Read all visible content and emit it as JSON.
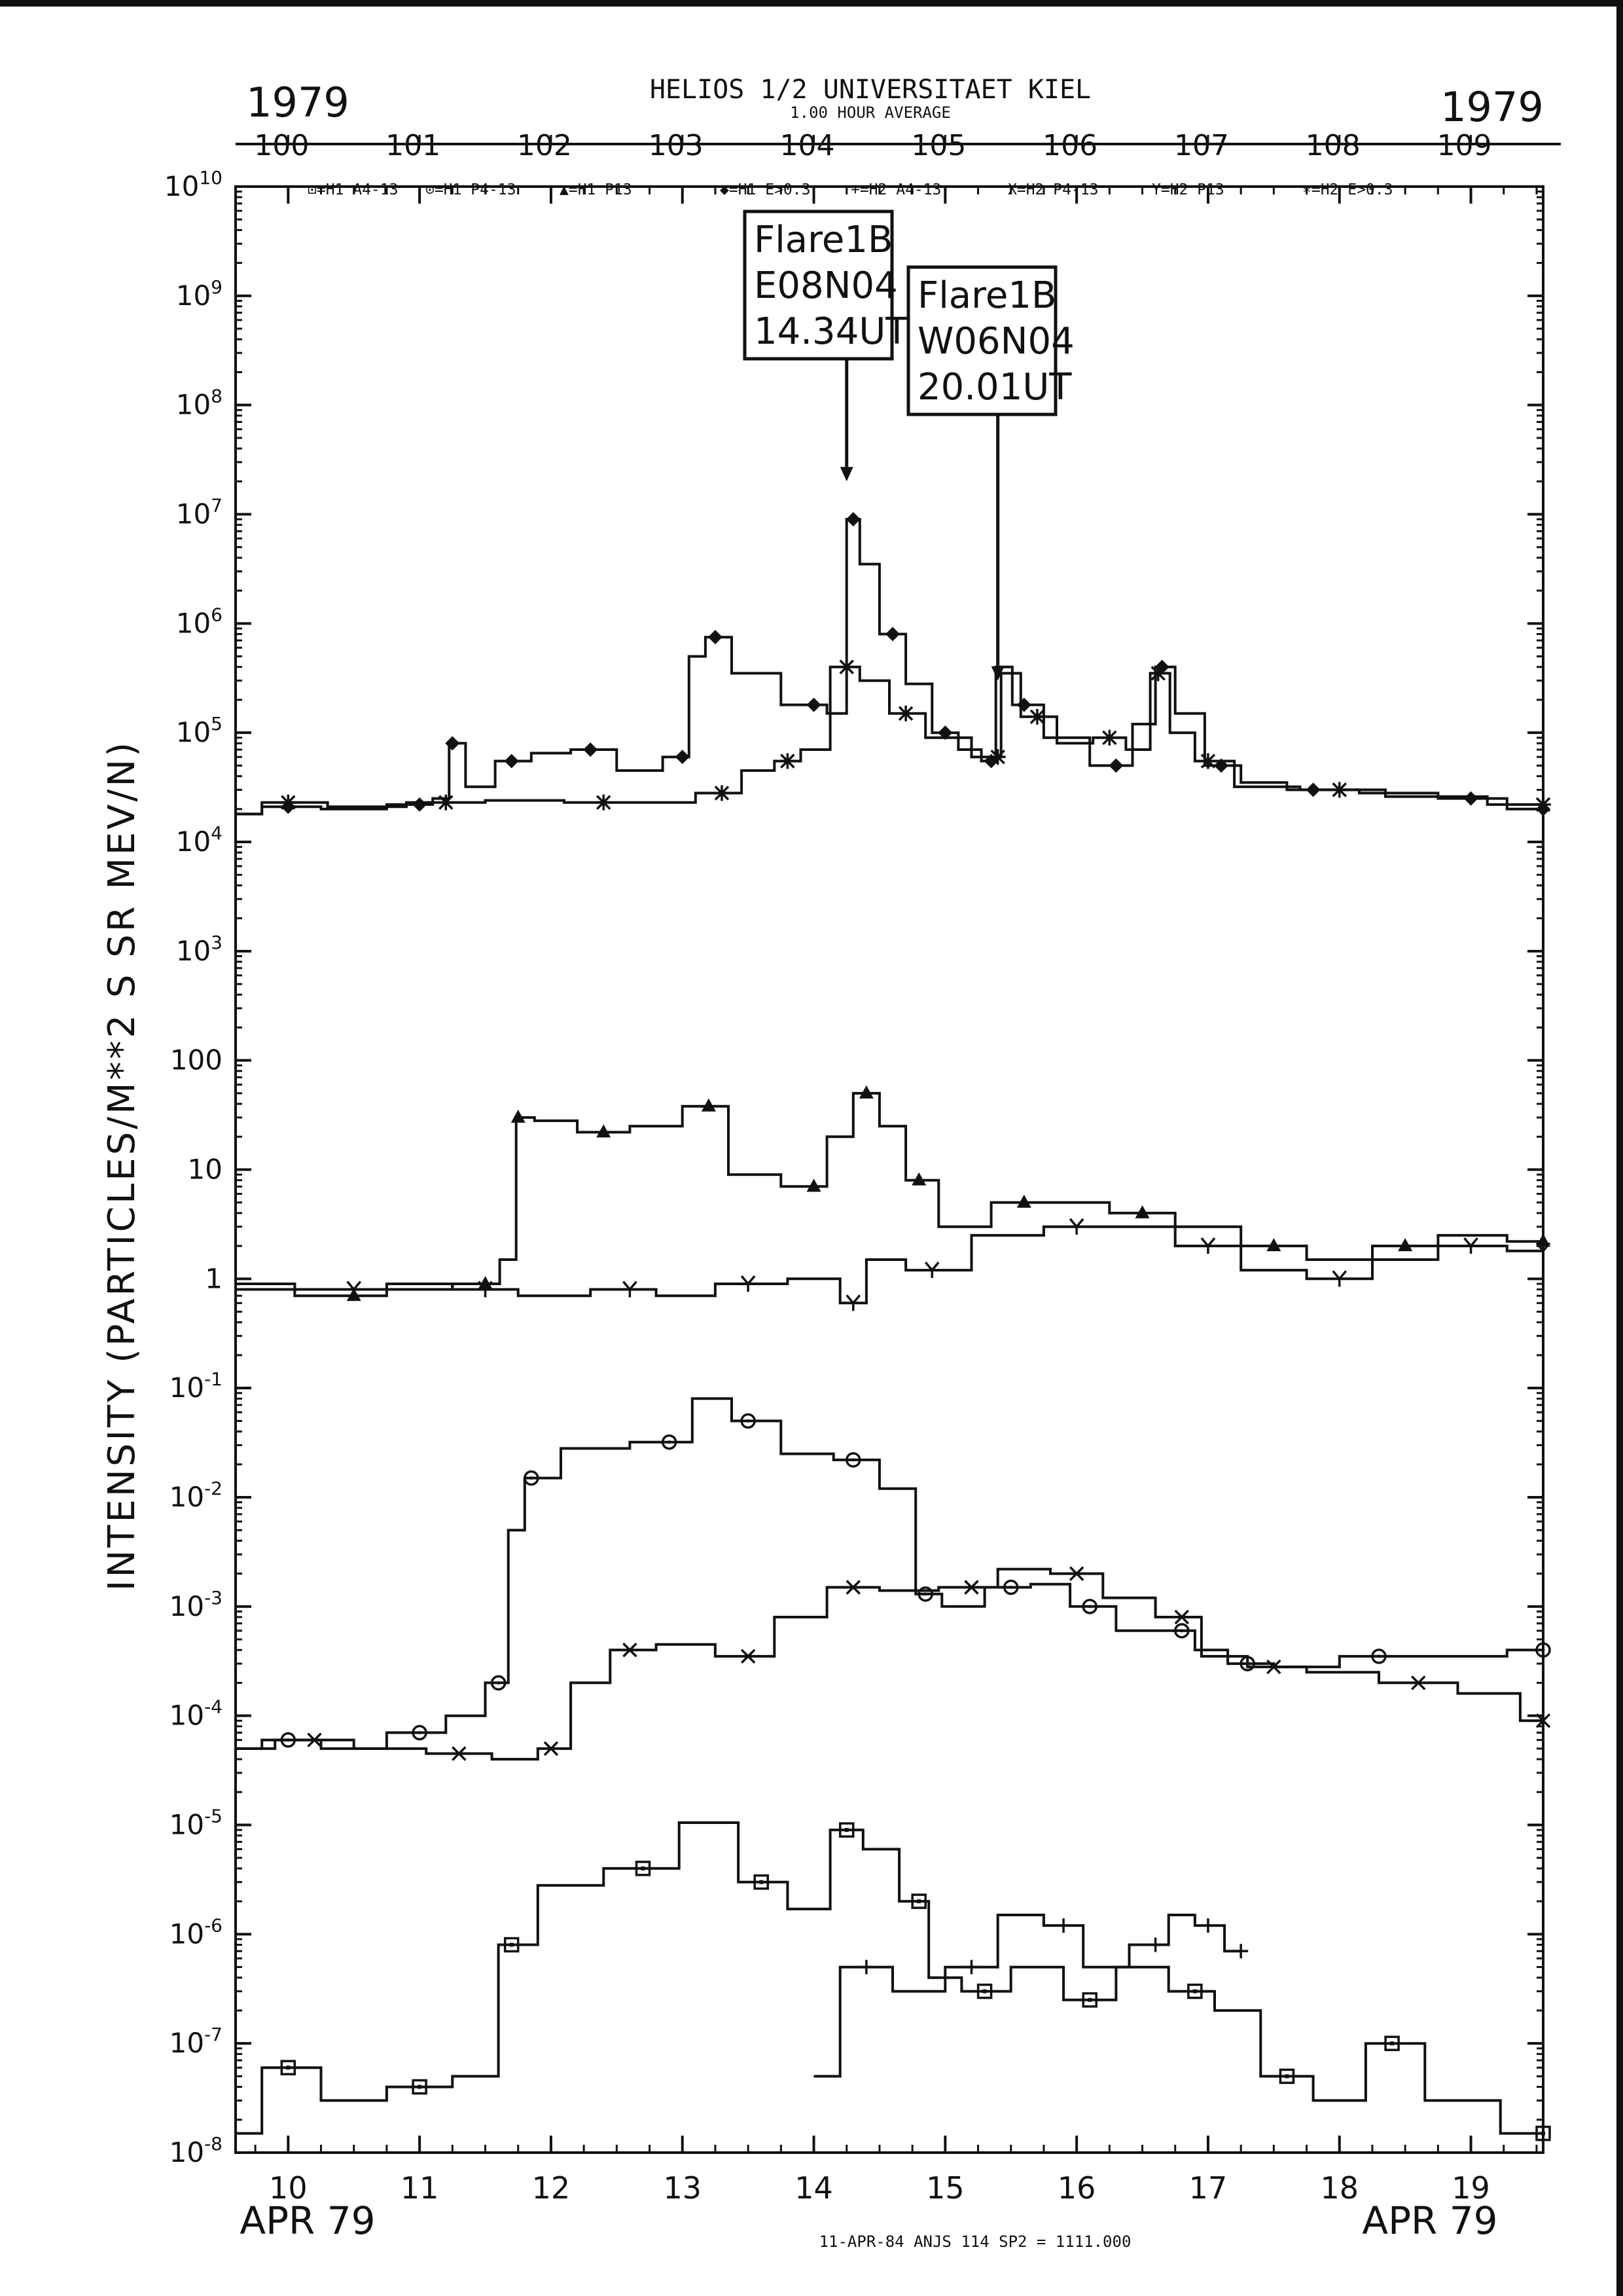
{
  "header": {
    "title": "HELIOS 1/2  UNIVERSITAET KIEL",
    "subtitle": "1.00 HOUR AVERAGE",
    "year_left": "1979",
    "year_right": "1979",
    "footer": "11-APR-84 ANJS 114 SP2 = 1111.000",
    "month_left": "APR 79",
    "month_right": "APR 79"
  },
  "chart_data": {
    "type": "line",
    "title": "HELIOS 1/2  UNIVERSITAET KIEL",
    "subtitle": "1.00 HOUR AVERAGE",
    "xlabel": "APR 79",
    "ylabel": "INTENSITY (PARTICLES/M**2 S SR MEV/N)",
    "yscale": "log",
    "ylim": [
      1e-08,
      10000000000.0
    ],
    "xlim": [
      9.6,
      19.55
    ],
    "grid": false,
    "legend_position": "top",
    "x_ticks": [
      "10",
      "11",
      "12",
      "13",
      "14",
      "15",
      "16",
      "17",
      "18",
      "19"
    ],
    "doy_ticks": [
      "100",
      "101",
      "102",
      "103",
      "104",
      "105",
      "106",
      "107",
      "108",
      "109"
    ],
    "y_ticks": [
      "10^10",
      "10^9",
      "10^8",
      "10^7",
      "10^6",
      "10^5",
      "10^4",
      "10^3",
      "100",
      "10",
      "1",
      "10^-1",
      "10^-2",
      "10^-3",
      "10^-4",
      "10^-5",
      "10^-6",
      "10^-7",
      "10^-8"
    ],
    "legend": [
      {
        "label": "⊡=H1 A4-13",
        "symbol": "⊡"
      },
      {
        "label": "⊙=H1 P4-13",
        "symbol": "⊙"
      },
      {
        "label": "▲=H1 P13",
        "symbol": "▲"
      },
      {
        "label": "◆=H1 E>0.3",
        "symbol": "◆"
      },
      {
        "label": "+=H2 A4-13",
        "symbol": "+"
      },
      {
        "label": "X=H2 P4-13",
        "symbol": "X"
      },
      {
        "label": "Y=H2 P13",
        "symbol": "Y"
      },
      {
        "label": "∗=H2 E>0.3",
        "symbol": "∗"
      }
    ],
    "annotations": [
      {
        "lines": [
          "Flare1B",
          "E08N04",
          "14.34UT"
        ],
        "x": 14.25,
        "y": 20000000.0
      },
      {
        "lines": [
          "Flare1B",
          "W06N04",
          "20.01UT"
        ],
        "x": 15.4,
        "y": 300000.0
      }
    ],
    "series": [
      {
        "name": "H1 E>0.3",
        "symbol": "◆",
        "points": [
          [
            9.6,
            18000.0
          ],
          [
            10.0,
            21000.0
          ],
          [
            10.5,
            20000.0
          ],
          [
            11.0,
            22000.0
          ],
          [
            11.2,
            25000.0
          ],
          [
            11.25,
            80000.0
          ],
          [
            11.45,
            32000.0
          ],
          [
            11.7,
            55000.0
          ],
          [
            12.0,
            65000.0
          ],
          [
            12.3,
            70000.0
          ],
          [
            12.7,
            45000.0
          ],
          [
            13.0,
            60000.0
          ],
          [
            13.1,
            500000.0
          ],
          [
            13.25,
            750000.0
          ],
          [
            13.5,
            350000.0
          ],
          [
            14.0,
            180000.0
          ],
          [
            14.2,
            150000.0
          ],
          [
            14.3,
            9000000.0
          ],
          [
            14.4,
            3500000.0
          ],
          [
            14.6,
            800000.0
          ],
          [
            14.8,
            280000.0
          ],
          [
            15.0,
            100000.0
          ],
          [
            15.2,
            70000.0
          ],
          [
            15.35,
            55000.0
          ],
          [
            15.42,
            400000.0
          ],
          [
            15.6,
            180000.0
          ],
          [
            15.9,
            90000.0
          ],
          [
            16.3,
            50000.0
          ],
          [
            16.55,
            120000.0
          ],
          [
            16.65,
            400000.0
          ],
          [
            16.85,
            150000.0
          ],
          [
            17.1,
            50000.0
          ],
          [
            17.4,
            35000.0
          ],
          [
            17.8,
            30000.0
          ],
          [
            18.5,
            28000.0
          ],
          [
            19.0,
            25000.0
          ],
          [
            19.55,
            20000.0
          ]
        ]
      },
      {
        "name": "H2 E>0.3",
        "symbol": "∗",
        "points": [
          [
            9.6,
            18000.0
          ],
          [
            10.0,
            23000.0
          ],
          [
            10.6,
            21000.0
          ],
          [
            11.2,
            23000.0
          ],
          [
            11.8,
            24000.0
          ],
          [
            12.4,
            23000.0
          ],
          [
            12.9,
            23000.0
          ],
          [
            13.3,
            28000.0
          ],
          [
            13.6,
            45000.0
          ],
          [
            13.8,
            55000.0
          ],
          [
            14.0,
            70000.0
          ],
          [
            14.25,
            400000.0
          ],
          [
            14.45,
            300000.0
          ],
          [
            14.7,
            150000.0
          ],
          [
            15.0,
            90000.0
          ],
          [
            15.4,
            60000.0
          ],
          [
            15.45,
            350000.0
          ],
          [
            15.7,
            140000.0
          ],
          [
            16.0,
            80000.0
          ],
          [
            16.25,
            90000.0
          ],
          [
            16.5,
            70000.0
          ],
          [
            16.62,
            350000.0
          ],
          [
            16.8,
            100000.0
          ],
          [
            17.0,
            55000.0
          ],
          [
            17.4,
            32000.0
          ],
          [
            18.0,
            30000.0
          ],
          [
            18.7,
            26000.0
          ],
          [
            19.55,
            22000.0
          ]
        ]
      },
      {
        "name": "H1 P13",
        "symbol": "▲",
        "points": [
          [
            9.6,
            0.8
          ],
          [
            10.5,
            0.7
          ],
          [
            11.0,
            0.8
          ],
          [
            11.5,
            0.9
          ],
          [
            11.72,
            1.5
          ],
          [
            11.75,
            30
          ],
          [
            12.0,
            28
          ],
          [
            12.4,
            22
          ],
          [
            12.8,
            25
          ],
          [
            13.2,
            38
          ],
          [
            13.5,
            9
          ],
          [
            14.0,
            7
          ],
          [
            14.2,
            20
          ],
          [
            14.4,
            50
          ],
          [
            14.6,
            25
          ],
          [
            14.8,
            8
          ],
          [
            15.1,
            3
          ],
          [
            15.6,
            5
          ],
          [
            16.0,
            5
          ],
          [
            16.5,
            4
          ],
          [
            17.0,
            3
          ],
          [
            17.5,
            2
          ],
          [
            18.0,
            1.5
          ],
          [
            18.5,
            2
          ],
          [
            19.0,
            2.5
          ],
          [
            19.55,
            2.2
          ]
        ]
      },
      {
        "name": "H2 P13",
        "symbol": "Y",
        "points": [
          [
            9.6,
            0.9
          ],
          [
            10.5,
            0.8
          ],
          [
            11.0,
            0.9
          ],
          [
            11.5,
            0.8
          ],
          [
            12.0,
            0.7
          ],
          [
            12.6,
            0.8
          ],
          [
            13.0,
            0.7
          ],
          [
            13.5,
            0.9
          ],
          [
            14.1,
            1.0
          ],
          [
            14.3,
            0.6
          ],
          [
            14.5,
            1.5
          ],
          [
            14.9,
            1.2
          ],
          [
            15.5,
            2.5
          ],
          [
            16.0,
            3
          ],
          [
            16.5,
            3
          ],
          [
            17.0,
            2
          ],
          [
            17.5,
            1.2
          ],
          [
            18.0,
            1.0
          ],
          [
            18.5,
            1.5
          ],
          [
            19.0,
            2
          ],
          [
            19.55,
            1.8
          ]
        ]
      },
      {
        "name": "H1 P4-13",
        "symbol": "⊙",
        "points": [
          [
            9.6,
            5e-05
          ],
          [
            10.0,
            6e-05
          ],
          [
            10.5,
            5e-05
          ],
          [
            11.0,
            7e-05
          ],
          [
            11.4,
            0.0001
          ],
          [
            11.6,
            0.0002
          ],
          [
            11.75,
            0.005
          ],
          [
            11.85,
            0.015
          ],
          [
            12.3,
            0.028
          ],
          [
            12.9,
            0.032
          ],
          [
            13.25,
            0.08
          ],
          [
            13.5,
            0.05
          ],
          [
            14.0,
            0.025
          ],
          [
            14.3,
            0.022
          ],
          [
            14.7,
            0.012
          ],
          [
            14.85,
            0.0013
          ],
          [
            15.1,
            0.001
          ],
          [
            15.5,
            0.0015
          ],
          [
            15.8,
            0.0016
          ],
          [
            16.1,
            0.001
          ],
          [
            16.5,
            0.0006
          ],
          [
            16.8,
            0.0006
          ],
          [
            17.0,
            0.0004
          ],
          [
            17.3,
            0.0003
          ],
          [
            17.7,
            0.00028
          ],
          [
            18.3,
            0.00035
          ],
          [
            19.0,
            0.00035
          ],
          [
            19.55,
            0.0004
          ]
        ]
      },
      {
        "name": "H2 P4-13",
        "symbol": "X",
        "points": [
          [
            9.6,
            5e-05
          ],
          [
            10.2,
            6e-05
          ],
          [
            10.8,
            5e-05
          ],
          [
            11.3,
            4.5e-05
          ],
          [
            11.8,
            4e-05
          ],
          [
            12.0,
            5e-05
          ],
          [
            12.3,
            0.0002
          ],
          [
            12.6,
            0.0004
          ],
          [
            13.0,
            0.00045
          ],
          [
            13.5,
            0.00035
          ],
          [
            13.9,
            0.0008
          ],
          [
            14.3,
            0.0015
          ],
          [
            14.7,
            0.0014
          ],
          [
            15.2,
            0.0015
          ],
          [
            15.6,
            0.0022
          ],
          [
            16.0,
            0.002
          ],
          [
            16.4,
            0.0012
          ],
          [
            16.8,
            0.0008
          ],
          [
            17.1,
            0.00035
          ],
          [
            17.5,
            0.00028
          ],
          [
            18.0,
            0.00025
          ],
          [
            18.6,
            0.0002
          ],
          [
            19.2,
            0.00016
          ],
          [
            19.55,
            9e-05
          ]
        ]
      },
      {
        "name": "H1 A4-13",
        "symbol": "⊡",
        "points": [
          [
            9.6,
            1.5e-08
          ],
          [
            10.0,
            6e-08
          ],
          [
            10.5,
            3e-08
          ],
          [
            11.0,
            4e-08
          ],
          [
            11.5,
            5e-08
          ],
          [
            11.7,
            8e-07
          ],
          [
            12.1,
            2.8e-06
          ],
          [
            12.7,
            4e-06
          ],
          [
            13.25,
            1.05e-05
          ],
          [
            13.6,
            3e-06
          ],
          [
            14.0,
            1.7e-06
          ],
          [
            14.25,
            9e-06
          ],
          [
            14.5,
            6e-06
          ],
          [
            14.8,
            2e-06
          ],
          [
            14.95,
            4e-07
          ],
          [
            15.3,
            3e-07
          ],
          [
            15.7,
            5e-07
          ],
          [
            16.1,
            2.5e-07
          ],
          [
            16.5,
            5e-07
          ],
          [
            16.9,
            3e-07
          ],
          [
            17.2,
            2e-07
          ],
          [
            17.6,
            5e-08
          ],
          [
            18.0,
            3e-08
          ],
          [
            18.4,
            1e-07
          ],
          [
            18.9,
            3e-08
          ],
          [
            19.55,
            1.5e-08
          ]
        ]
      },
      {
        "name": "H2 A4-13",
        "symbol": "+",
        "points": [
          [
            14.0,
            5e-08
          ],
          [
            14.4,
            5e-07
          ],
          [
            14.8,
            3e-07
          ],
          [
            15.2,
            5e-07
          ],
          [
            15.6,
            1.5e-06
          ],
          [
            15.9,
            1.2e-06
          ],
          [
            16.2,
            5e-07
          ],
          [
            16.6,
            8e-07
          ],
          [
            16.8,
            1.5e-06
          ],
          [
            17.0,
            1.2e-06
          ],
          [
            17.25,
            7e-07
          ]
        ]
      }
    ]
  }
}
